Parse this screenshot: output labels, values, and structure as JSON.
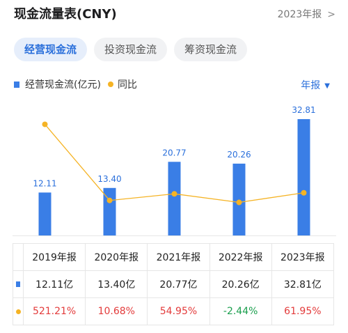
{
  "header": {
    "title": "现金流量表(CNY)",
    "report_link": "2023年报"
  },
  "tabs": [
    {
      "label": "经营现金流"
    },
    {
      "label": "投资现金流"
    },
    {
      "label": "筹资现金流"
    }
  ],
  "legend": {
    "bar_label": "经营现金流(亿元)",
    "line_label": "同比"
  },
  "period_selector": "年报",
  "colors": {
    "bar": "#3a7ee6",
    "line": "#f5b324",
    "accent": "#2a6fdb",
    "positive": "#e33b3b",
    "negative": "#1a9e4d"
  },
  "chart_data": {
    "type": "bar",
    "categories": [
      "2019年报",
      "2020年报",
      "2021年报",
      "2022年报",
      "2023年报"
    ],
    "series": [
      {
        "name": "经营现金流(亿元)",
        "type": "bar",
        "values": [
          12.11,
          13.4,
          20.77,
          20.26,
          32.81
        ]
      },
      {
        "name": "同比",
        "type": "line",
        "values": [
          521.21,
          10.68,
          54.95,
          -2.44,
          61.95
        ]
      }
    ],
    "bar_labels": [
      "12.11",
      "13.40",
      "20.77",
      "20.26",
      "32.81"
    ],
    "grid": false,
    "legend_position": "top-left"
  },
  "table": {
    "headers": [
      "2019年报",
      "2020年报",
      "2021年报",
      "2022年报",
      "2023年报"
    ],
    "value_row": [
      "12.11亿",
      "13.40亿",
      "20.77亿",
      "20.26亿",
      "32.81亿"
    ],
    "yoy_row": [
      "521.21%",
      "10.68%",
      "54.95%",
      "-2.44%",
      "61.95%"
    ]
  }
}
